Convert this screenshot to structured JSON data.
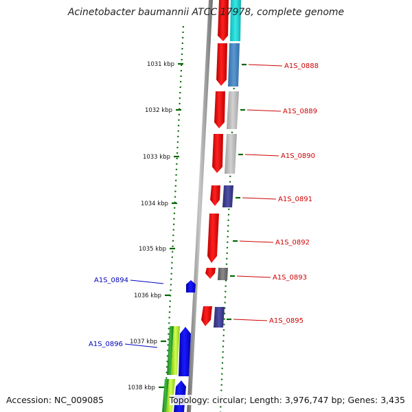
{
  "title": "Acinetobacter baumannii ATCC 17978, complete genome",
  "footer": {
    "accession": "Accession: NC_009085",
    "summary": "Topology: circular; Length: 3,976,747 bp; Genes: 3,435"
  },
  "colors": {
    "forward_cds": "#ee0000",
    "reverse_cds": "#0000ee",
    "forward_label": "#cc0000",
    "reverse_label": "#0000bb",
    "tick": "#006600",
    "backbone": "#8a8a8a",
    "cog_cyan": "#1fd6d6",
    "cog_steelblue": "#4a86c0",
    "cog_lightgray": "#b8b8b8",
    "cog_navy": "#3a3a8a",
    "cog_darkgray": "#707070",
    "cog_green": "#2b9a2b",
    "cog_lime": "#a8e020"
  },
  "scale": {
    "ticks": [
      {
        "label": "1031 kbp"
      },
      {
        "label": "1032 kbp"
      },
      {
        "label": "1033 kbp"
      },
      {
        "label": "1034 kbp"
      },
      {
        "label": "1035 kbp"
      },
      {
        "label": "1036 kbp"
      },
      {
        "label": "1037 kbp"
      },
      {
        "label": "1038 kbp"
      }
    ]
  },
  "genes": {
    "forward": [
      {
        "label": "A1S_0888"
      },
      {
        "label": "A1S_0889"
      },
      {
        "label": "A1S_0890"
      },
      {
        "label": "A1S_0891"
      },
      {
        "label": "A1S_0892"
      },
      {
        "label": "A1S_0893"
      },
      {
        "label": "A1S_0895"
      }
    ],
    "reverse": [
      {
        "label": "A1S_0894"
      },
      {
        "label": "A1S_0896"
      }
    ]
  }
}
